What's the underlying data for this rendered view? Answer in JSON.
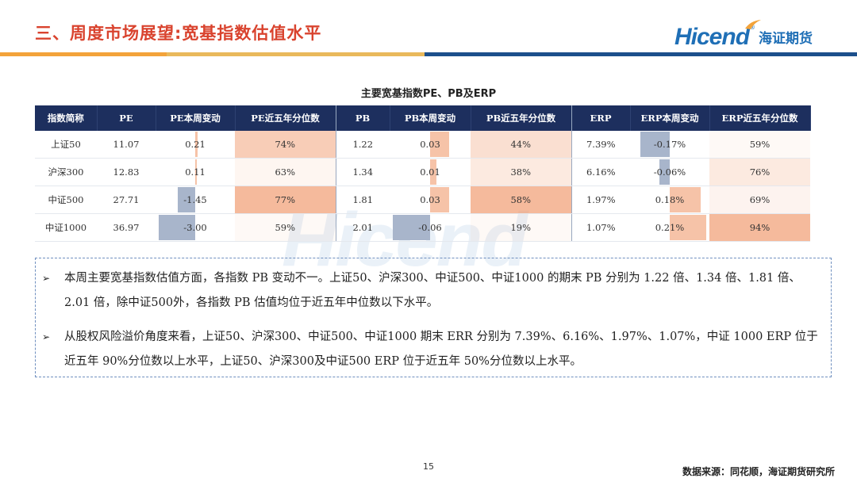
{
  "header": {
    "title": "三、周度市场展望:宽基指数估值水平",
    "logo_text": "Hicend",
    "logo_reg": "®",
    "logo_cn": "海证期货"
  },
  "watermark": "Hicend",
  "table": {
    "title": "主要宽基指数PE、PB及ERP",
    "headers": [
      "指数简称",
      "PE",
      "PE本周变动",
      "PE近五年分位数",
      "PB",
      "PB本周变动",
      "PB近五年分位数",
      "ERP",
      "ERP本周变动",
      "ERP近五年分位数"
    ],
    "rows": [
      {
        "name": "上证50",
        "pe": "11.07",
        "pe_chg": "0.21",
        "pe_pct": "74%",
        "pb": "1.22",
        "pb_chg": "0.03",
        "pb_pct": "44%",
        "erp": "7.39%",
        "erp_chg": "-0.17%",
        "erp_pct": "59%"
      },
      {
        "name": "沪深300",
        "pe": "12.83",
        "pe_chg": "0.11",
        "pe_pct": "63%",
        "pb": "1.34",
        "pb_chg": "0.01",
        "pb_pct": "38%",
        "erp": "6.16%",
        "erp_chg": "-0.06%",
        "erp_pct": "76%"
      },
      {
        "name": "中证500",
        "pe": "27.71",
        "pe_chg": "-1.45",
        "pe_pct": "77%",
        "pb": "1.81",
        "pb_chg": "0.03",
        "pb_pct": "58%",
        "erp": "1.97%",
        "erp_chg": "0.18%",
        "erp_pct": "69%"
      },
      {
        "name": "中证1000",
        "pe": "36.97",
        "pe_chg": "-3.00",
        "pe_pct": "59%",
        "pb": "2.01",
        "pb_chg": "-0.06",
        "pb_pct": "19%",
        "erp": "1.07%",
        "erp_chg": "0.21%",
        "erp_pct": "94%"
      }
    ]
  },
  "notes": [
    "本周主要宽基指数估值方面，各指数 PB 变动不一。上证50、沪深300、中证500、中证1000 的期末 PB 分别为 1.22 倍、1.34 倍、1.81 倍、2.01 倍，除中证500外，各指数 PB 估值均位于近五年中位数以下水平。",
    "从股权风险溢价角度来看，上证50、沪深300、中证500、中证1000 期末 ERR 分别为 7.39%、6.16%、1.97%、1.07%，中证 1000 ERP 位于近五年 90%分位数以上水平，上证50、沪深300及中证500 ERP 位于近五年 50%分位数以上水平。"
  ],
  "note_bullet": "➢",
  "page_number": "15",
  "source": "数据来源：同花顺，海证期货研究所",
  "colors": {
    "title_red": "#d9432e",
    "header_navy": "#1d2f5e",
    "positive_bar": "#f6c3a8",
    "negative_bar": "#a8b5cb",
    "brand_blue": "#1f6fb6"
  }
}
